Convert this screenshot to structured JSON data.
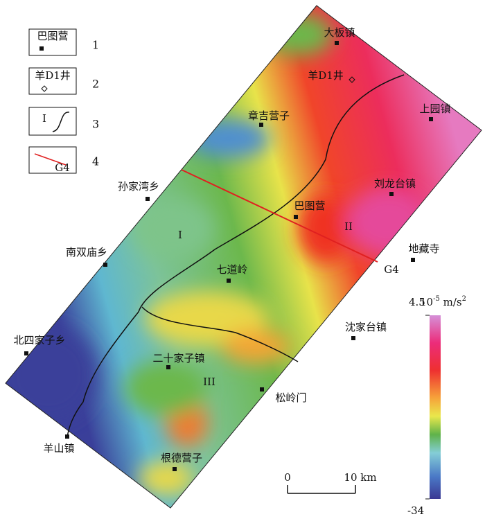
{
  "legend": [
    {
      "label": "巴图营",
      "number": "1"
    },
    {
      "label": "羊D1井",
      "number": "2"
    },
    {
      "label": "I",
      "number": "3"
    },
    {
      "label": "G4",
      "number": "4"
    }
  ],
  "places": [
    "大板镇",
    "章吉营子",
    "上园镇",
    "孙家湾乡",
    "刘龙台镇",
    "巴图营",
    "南双庙乡",
    "地藏寺",
    "七道岭",
    "沈家台镇",
    "北四家子乡",
    "二十家子镇",
    "松岭门",
    "羊山镇",
    "根德营子"
  ],
  "well": "羊D1井",
  "regions": [
    "I",
    "II",
    "III"
  ],
  "profile": "G4",
  "colorbar": {
    "max": 4.5,
    "min": -34,
    "unit_base": "10",
    "unit_exp": "-5",
    "unit": " m/s",
    "unit_sup": "2"
  },
  "scale": {
    "start": 0,
    "end_label": "10 km"
  }
}
